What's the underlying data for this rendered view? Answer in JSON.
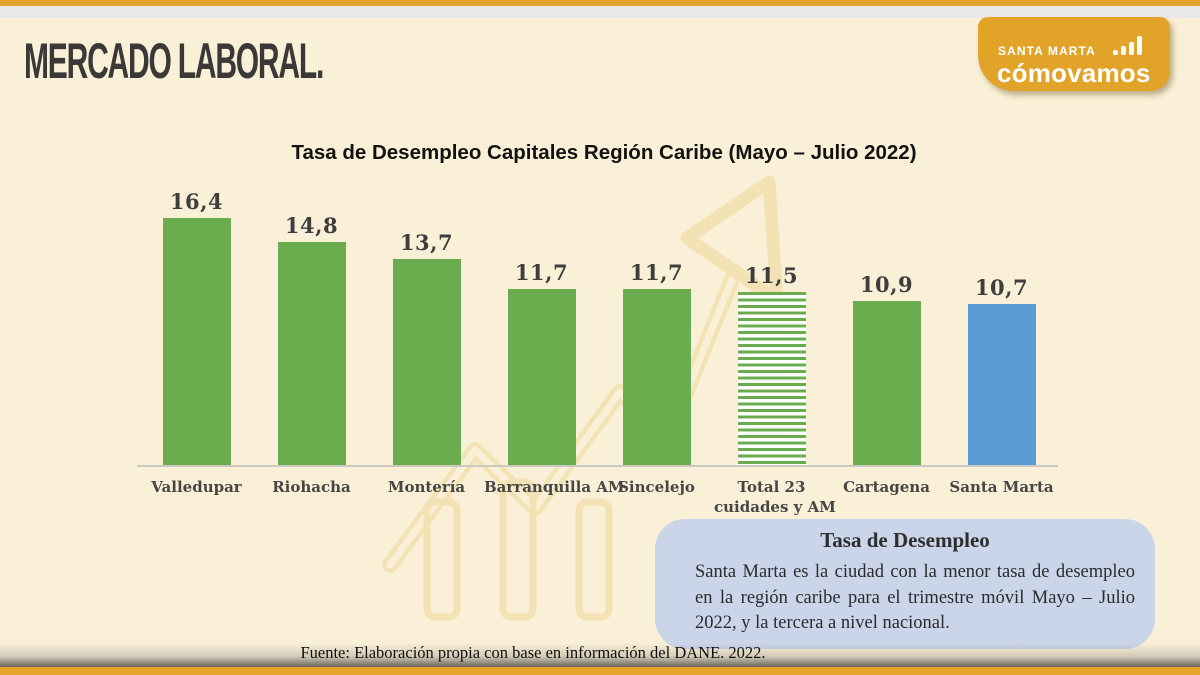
{
  "header": {
    "title": "MERCADO LABORAL."
  },
  "logo": {
    "line1": "SANTA MARTA",
    "line2": "cómovamos",
    "icon": "bar-chart-icon",
    "bg_color": "#E2A329"
  },
  "chart_data": {
    "type": "bar",
    "title": "Tasa de Desempleo Capitales Región Caribe (Mayo – Julio 2022)",
    "categories": [
      "Valledupar",
      "Riohacha",
      "Montería",
      "Barranquilla AM",
      "Sincelejo",
      "Total 23\ncuidades y AM",
      "Cartagena",
      "Santa Marta"
    ],
    "values": [
      16.4,
      14.8,
      13.7,
      11.7,
      11.7,
      11.5,
      10.9,
      10.7
    ],
    "value_labels": [
      "16,4",
      "14,8",
      "13,7",
      "11,7",
      "11,7",
      "11,5",
      "10,9",
      "10,7"
    ],
    "bar_styles": [
      "solid-green",
      "solid-green",
      "solid-green",
      "solid-green",
      "solid-green",
      "striped-green",
      "solid-green",
      "solid-blue"
    ],
    "colors": {
      "green": "#6BAC4F",
      "blue": "#5B9BD5",
      "striped_fg": "#6BAC4F",
      "striped_bg": "#FFFFFF"
    },
    "xlabel": "",
    "ylabel": "",
    "ylim": [
      0,
      16.4
    ],
    "grid": false,
    "legend": null
  },
  "callout": {
    "title": "Tasa de Desempleo",
    "body": "Santa Marta es la ciudad con la menor tasa de desempleo en la región caribe para el trimestre móvil Mayo – Julio 2022, y la tercera a nivel nacional."
  },
  "footer": {
    "source": "Fuente: Elaboración propia con base en información del DANE. 2022."
  },
  "theme": {
    "background": "#FAF0D7",
    "accent_orange": "#E4A430",
    "top_strip_gray": "#E9E9EB",
    "callout_bg": "#CBD5EA",
    "text_dark": "#3A3938",
    "axis_line": "#CBC9C2",
    "watermark": "#F3E3B4"
  }
}
